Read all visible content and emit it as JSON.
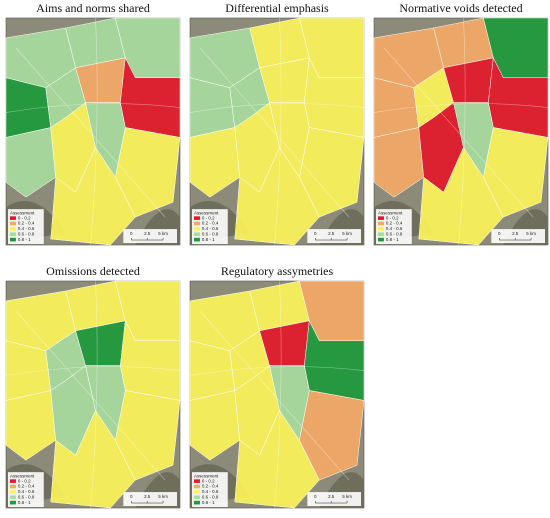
{
  "maps": [
    {
      "title": "Aims and norms shared"
    },
    {
      "title": "Differential emphasis"
    },
    {
      "title": "Normative voids detected"
    },
    {
      "title": "Omissions detected"
    },
    {
      "title": "Regulatory assymetries"
    }
  ],
  "legend": {
    "title": "Assessment",
    "items": [
      {
        "label": "0 - 0.2",
        "color": "#e3182b"
      },
      {
        "label": "0.2 - 0.4",
        "color": "#f4a866"
      },
      {
        "label": "0.4 - 0.6",
        "color": "#fbf35a"
      },
      {
        "label": "0.6 - 0.8",
        "color": "#a8dba0"
      },
      {
        "label": "0.8 - 1",
        "color": "#1d9a3c"
      }
    ]
  },
  "scale": {
    "labels": [
      "0",
      "2.5",
      "5 km"
    ]
  }
}
